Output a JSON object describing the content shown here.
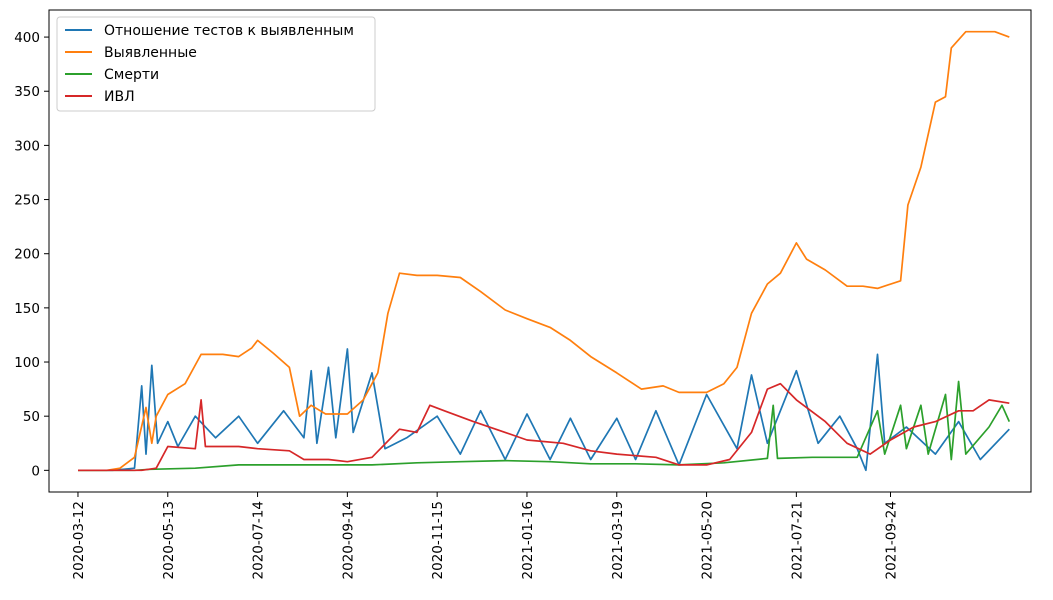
{
  "chart_data": {
    "type": "line",
    "title": "",
    "xlabel": "",
    "ylabel": "",
    "x_start": "2020-03-12",
    "x_end": "2021-12-15",
    "xlim": [
      "2020-02-21",
      "2021-12-30"
    ],
    "ylim": [
      -20,
      425
    ],
    "x_ticks": [
      "2020-03-12",
      "2020-05-13",
      "2020-07-14",
      "2020-09-14",
      "2020-11-15",
      "2021-01-16",
      "2021-03-19",
      "2021-05-20",
      "2021-07-21",
      "2021-09-24"
    ],
    "y_ticks": [
      0,
      50,
      100,
      150,
      200,
      250,
      300,
      350,
      400
    ],
    "y_tick_labels": [
      "0",
      "50",
      "100",
      "150",
      "200",
      "250",
      "300",
      "350",
      "400"
    ],
    "grid": false,
    "legend_position": "top-left",
    "series": [
      {
        "name": "Отношение тестов к выявленным",
        "color": "#1f77b4",
        "points": [
          [
            "2020-03-12",
            0
          ],
          [
            "2020-04-05",
            0
          ],
          [
            "2020-04-20",
            2
          ],
          [
            "2020-04-25",
            78
          ],
          [
            "2020-04-28",
            15
          ],
          [
            "2020-05-02",
            97
          ],
          [
            "2020-05-06",
            25
          ],
          [
            "2020-05-13",
            45
          ],
          [
            "2020-05-20",
            22
          ],
          [
            "2020-06-01",
            50
          ],
          [
            "2020-06-15",
            30
          ],
          [
            "2020-07-01",
            50
          ],
          [
            "2020-07-14",
            25
          ],
          [
            "2020-08-01",
            55
          ],
          [
            "2020-08-15",
            30
          ],
          [
            "2020-08-20",
            92
          ],
          [
            "2020-08-24",
            25
          ],
          [
            "2020-09-01",
            95
          ],
          [
            "2020-09-06",
            30
          ],
          [
            "2020-09-14",
            112
          ],
          [
            "2020-09-18",
            35
          ],
          [
            "2020-10-01",
            90
          ],
          [
            "2020-10-10",
            20
          ],
          [
            "2020-10-25",
            30
          ],
          [
            "2020-11-15",
            50
          ],
          [
            "2020-12-01",
            15
          ],
          [
            "2020-12-15",
            55
          ],
          [
            "2021-01-01",
            10
          ],
          [
            "2021-01-16",
            52
          ],
          [
            "2021-02-01",
            10
          ],
          [
            "2021-02-15",
            48
          ],
          [
            "2021-03-01",
            10
          ],
          [
            "2021-03-19",
            48
          ],
          [
            "2021-04-01",
            10
          ],
          [
            "2021-04-15",
            55
          ],
          [
            "2021-05-01",
            5
          ],
          [
            "2021-05-20",
            70
          ],
          [
            "2021-06-10",
            20
          ],
          [
            "2021-06-20",
            88
          ],
          [
            "2021-07-01",
            25
          ],
          [
            "2021-07-21",
            92
          ],
          [
            "2021-08-05",
            25
          ],
          [
            "2021-08-20",
            50
          ],
          [
            "2021-09-01",
            20
          ],
          [
            "2021-09-07",
            0
          ],
          [
            "2021-09-15",
            107
          ],
          [
            "2021-09-20",
            25
          ],
          [
            "2021-10-05",
            40
          ],
          [
            "2021-10-25",
            15
          ],
          [
            "2021-11-10",
            45
          ],
          [
            "2021-11-25",
            10
          ],
          [
            "2021-12-15",
            38
          ]
        ]
      },
      {
        "name": "Выявленные",
        "color": "#ff7f0e",
        "points": [
          [
            "2020-03-12",
            0
          ],
          [
            "2020-04-01",
            0
          ],
          [
            "2020-04-10",
            2
          ],
          [
            "2020-04-20",
            12
          ],
          [
            "2020-04-28",
            58
          ],
          [
            "2020-05-02",
            25
          ],
          [
            "2020-05-05",
            50
          ],
          [
            "2020-05-13",
            70
          ],
          [
            "2020-05-25",
            80
          ],
          [
            "2020-06-05",
            107
          ],
          [
            "2020-06-20",
            107
          ],
          [
            "2020-07-01",
            105
          ],
          [
            "2020-07-10",
            113
          ],
          [
            "2020-07-14",
            120
          ],
          [
            "2020-07-25",
            108
          ],
          [
            "2020-08-05",
            95
          ],
          [
            "2020-08-12",
            50
          ],
          [
            "2020-08-20",
            60
          ],
          [
            "2020-08-30",
            52
          ],
          [
            "2020-09-14",
            52
          ],
          [
            "2020-09-25",
            65
          ],
          [
            "2020-10-05",
            90
          ],
          [
            "2020-10-12",
            145
          ],
          [
            "2020-10-20",
            182
          ],
          [
            "2020-11-01",
            180
          ],
          [
            "2020-11-15",
            180
          ],
          [
            "2020-12-01",
            178
          ],
          [
            "2020-12-15",
            165
          ],
          [
            "2021-01-01",
            148
          ],
          [
            "2021-01-16",
            140
          ],
          [
            "2021-02-01",
            132
          ],
          [
            "2021-02-15",
            120
          ],
          [
            "2021-03-01",
            105
          ],
          [
            "2021-03-19",
            90
          ],
          [
            "2021-04-05",
            75
          ],
          [
            "2021-04-20",
            78
          ],
          [
            "2021-05-01",
            72
          ],
          [
            "2021-05-20",
            72
          ],
          [
            "2021-06-01",
            80
          ],
          [
            "2021-06-10",
            95
          ],
          [
            "2021-06-20",
            145
          ],
          [
            "2021-07-01",
            172
          ],
          [
            "2021-07-10",
            182
          ],
          [
            "2021-07-21",
            210
          ],
          [
            "2021-07-28",
            195
          ],
          [
            "2021-08-10",
            185
          ],
          [
            "2021-08-25",
            170
          ],
          [
            "2021-09-05",
            170
          ],
          [
            "2021-09-15",
            168
          ],
          [
            "2021-10-01",
            175
          ],
          [
            "2021-10-06",
            245
          ],
          [
            "2021-10-15",
            280
          ],
          [
            "2021-10-25",
            340
          ],
          [
            "2021-11-01",
            345
          ],
          [
            "2021-11-05",
            390
          ],
          [
            "2021-11-15",
            405
          ],
          [
            "2021-12-05",
            405
          ],
          [
            "2021-12-15",
            400
          ]
        ]
      },
      {
        "name": "Смерти",
        "color": "#2ca02c",
        "points": [
          [
            "2020-03-12",
            0
          ],
          [
            "2020-04-20",
            0
          ],
          [
            "2020-05-01",
            1
          ],
          [
            "2020-06-01",
            2
          ],
          [
            "2020-07-01",
            5
          ],
          [
            "2020-08-01",
            5
          ],
          [
            "2020-09-01",
            5
          ],
          [
            "2020-10-01",
            5
          ],
          [
            "2020-11-01",
            7
          ],
          [
            "2020-12-01",
            8
          ],
          [
            "2021-01-01",
            9
          ],
          [
            "2021-02-01",
            8
          ],
          [
            "2021-03-01",
            6
          ],
          [
            "2021-04-01",
            6
          ],
          [
            "2021-05-01",
            5
          ],
          [
            "2021-06-01",
            7
          ],
          [
            "2021-07-01",
            11
          ],
          [
            "2021-07-05",
            60
          ],
          [
            "2021-07-08",
            11
          ],
          [
            "2021-08-01",
            12
          ],
          [
            "2021-09-01",
            12
          ],
          [
            "2021-09-15",
            55
          ],
          [
            "2021-09-20",
            15
          ],
          [
            "2021-10-01",
            60
          ],
          [
            "2021-10-05",
            20
          ],
          [
            "2021-10-15",
            60
          ],
          [
            "2021-10-20",
            15
          ],
          [
            "2021-11-01",
            70
          ],
          [
            "2021-11-05",
            10
          ],
          [
            "2021-11-10",
            82
          ],
          [
            "2021-11-15",
            15
          ],
          [
            "2021-12-01",
            40
          ],
          [
            "2021-12-10",
            60
          ],
          [
            "2021-12-15",
            45
          ]
        ]
      },
      {
        "name": "ИВЛ",
        "color": "#d62728",
        "points": [
          [
            "2020-03-12",
            0
          ],
          [
            "2020-04-25",
            0
          ],
          [
            "2020-05-05",
            2
          ],
          [
            "2020-05-13",
            22
          ],
          [
            "2020-06-01",
            20
          ],
          [
            "2020-06-05",
            65
          ],
          [
            "2020-06-08",
            22
          ],
          [
            "2020-07-01",
            22
          ],
          [
            "2020-07-14",
            20
          ],
          [
            "2020-08-05",
            18
          ],
          [
            "2020-08-15",
            10
          ],
          [
            "2020-09-01",
            10
          ],
          [
            "2020-09-14",
            8
          ],
          [
            "2020-10-01",
            12
          ],
          [
            "2020-10-20",
            38
          ],
          [
            "2020-11-01",
            35
          ],
          [
            "2020-11-10",
            60
          ],
          [
            "2020-11-20",
            55
          ],
          [
            "2020-12-10",
            45
          ],
          [
            "2021-01-01",
            35
          ],
          [
            "2021-01-16",
            28
          ],
          [
            "2021-02-10",
            25
          ],
          [
            "2021-03-01",
            18
          ],
          [
            "2021-03-19",
            15
          ],
          [
            "2021-04-15",
            12
          ],
          [
            "2021-05-01",
            5
          ],
          [
            "2021-05-20",
            5
          ],
          [
            "2021-06-05",
            10
          ],
          [
            "2021-06-20",
            35
          ],
          [
            "2021-07-01",
            75
          ],
          [
            "2021-07-10",
            80
          ],
          [
            "2021-07-21",
            65
          ],
          [
            "2021-08-10",
            45
          ],
          [
            "2021-08-25",
            25
          ],
          [
            "2021-09-10",
            15
          ],
          [
            "2021-09-24",
            28
          ],
          [
            "2021-10-10",
            40
          ],
          [
            "2021-10-25",
            45
          ],
          [
            "2021-11-10",
            55
          ],
          [
            "2021-11-20",
            55
          ],
          [
            "2021-12-01",
            65
          ],
          [
            "2021-12-15",
            62
          ]
        ]
      }
    ]
  }
}
